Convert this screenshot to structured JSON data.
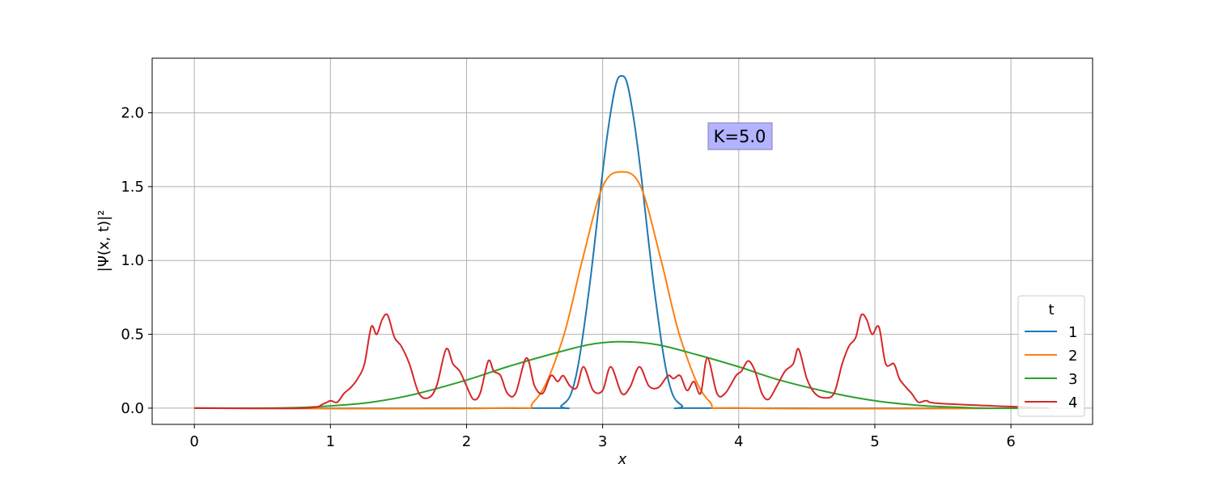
{
  "chart_data": {
    "type": "line",
    "xlabel": "x",
    "ylabel": "|Ψ(x, t)|²",
    "xlim": [
      -0.31,
      6.6
    ],
    "ylim": [
      -0.11,
      2.37
    ],
    "xticks": [
      0,
      1,
      2,
      3,
      4,
      5,
      6
    ],
    "xtick_labels": [
      "0",
      "1",
      "2",
      "3",
      "4",
      "5",
      "6"
    ],
    "yticks": [
      0.0,
      0.5,
      1.0,
      1.5,
      2.0
    ],
    "ytick_labels": [
      "0.0",
      "0.5",
      "1.0",
      "1.5",
      "2.0"
    ],
    "grid": true,
    "annotation": "K=5.0",
    "legend": {
      "title": "t",
      "placement": "lower-right"
    },
    "series": [
      {
        "name": "1",
        "color": "#1f77b4",
        "x": [
          0.0,
          2.5,
          2.7,
          2.8,
          2.9,
          3.0,
          3.05,
          3.1,
          3.14,
          3.18,
          3.23,
          3.28,
          3.38,
          3.48,
          3.58,
          3.78,
          6.28
        ],
        "y": [
          0.0,
          0.0,
          0.02,
          0.2,
          0.8,
          1.6,
          1.95,
          2.2,
          2.25,
          2.2,
          1.95,
          1.6,
          0.8,
          0.2,
          0.02,
          0.0,
          0.0
        ]
      },
      {
        "name": "2",
        "color": "#ff7f0e",
        "x": [
          0.0,
          2.2,
          2.5,
          2.7,
          2.85,
          3.0,
          3.14,
          3.28,
          3.43,
          3.58,
          3.78,
          4.08,
          6.28
        ],
        "y": [
          0.0,
          0.0,
          0.05,
          0.45,
          1.0,
          1.5,
          1.6,
          1.5,
          1.0,
          0.45,
          0.05,
          0.0,
          0.0
        ]
      },
      {
        "name": "3",
        "color": "#2ca02c",
        "x": [
          0.0,
          0.5,
          0.8,
          1.0,
          1.3,
          1.6,
          2.0,
          2.3,
          2.6,
          2.9,
          3.14,
          3.4,
          3.7,
          4.0,
          4.3,
          4.7,
          5.0,
          5.3,
          5.5,
          5.8,
          6.28
        ],
        "y": [
          0.0,
          0.0,
          0.005,
          0.015,
          0.04,
          0.09,
          0.19,
          0.28,
          0.36,
          0.43,
          0.45,
          0.43,
          0.36,
          0.28,
          0.19,
          0.1,
          0.05,
          0.02,
          0.01,
          0.0,
          0.0
        ]
      },
      {
        "name": "4",
        "color": "#d62728",
        "x": [
          0.0,
          0.8,
          0.95,
          1.0,
          1.05,
          1.1,
          1.15,
          1.2,
          1.25,
          1.3,
          1.34,
          1.38,
          1.42,
          1.47,
          1.52,
          1.58,
          1.65,
          1.72,
          1.78,
          1.85,
          1.9,
          1.95,
          2.0,
          2.05,
          2.1,
          2.16,
          2.2,
          2.25,
          2.3,
          2.36,
          2.44,
          2.5,
          2.56,
          2.62,
          2.67,
          2.71,
          2.76,
          2.81,
          2.86,
          2.93,
          3.0,
          3.06,
          3.14,
          3.2,
          3.27,
          3.34,
          3.41,
          3.48,
          3.52,
          3.57,
          3.62,
          3.67,
          3.72,
          3.77,
          3.84,
          3.9,
          3.98,
          4.02,
          4.07,
          4.12,
          4.17,
          4.22,
          4.28,
          4.34,
          4.4,
          4.44,
          4.5,
          4.56,
          4.63,
          4.7,
          4.76,
          4.81,
          4.86,
          4.9,
          4.94,
          4.98,
          5.03,
          5.08,
          5.14,
          5.18,
          5.23,
          5.27,
          5.32,
          5.38,
          5.5,
          6.28
        ],
        "y": [
          0.0,
          0.0,
          0.03,
          0.05,
          0.04,
          0.1,
          0.14,
          0.2,
          0.3,
          0.55,
          0.5,
          0.6,
          0.63,
          0.48,
          0.42,
          0.3,
          0.1,
          0.07,
          0.15,
          0.4,
          0.3,
          0.25,
          0.15,
          0.06,
          0.1,
          0.32,
          0.25,
          0.22,
          0.1,
          0.1,
          0.34,
          0.15,
          0.1,
          0.22,
          0.18,
          0.22,
          0.15,
          0.14,
          0.28,
          0.12,
          0.12,
          0.28,
          0.1,
          0.14,
          0.28,
          0.15,
          0.14,
          0.22,
          0.2,
          0.22,
          0.12,
          0.18,
          0.1,
          0.34,
          0.1,
          0.1,
          0.22,
          0.25,
          0.32,
          0.25,
          0.1,
          0.06,
          0.15,
          0.25,
          0.3,
          0.4,
          0.2,
          0.1,
          0.07,
          0.1,
          0.3,
          0.42,
          0.48,
          0.63,
          0.6,
          0.5,
          0.55,
          0.3,
          0.3,
          0.2,
          0.14,
          0.1,
          0.04,
          0.05,
          0.03,
          0.0
        ]
      }
    ]
  }
}
